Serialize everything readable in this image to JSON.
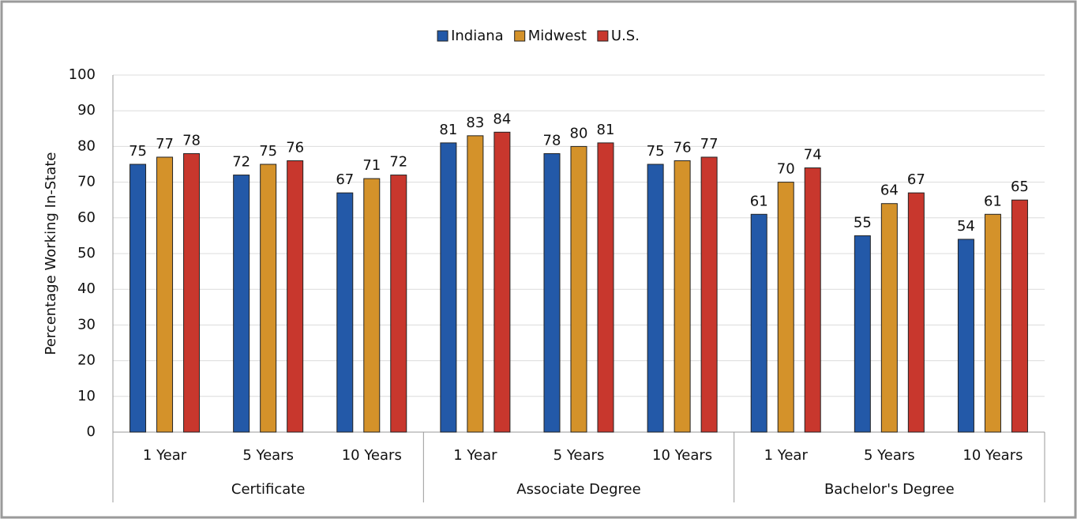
{
  "chart_data": {
    "type": "bar",
    "y_label": "Percentage Working In-State",
    "categories": [
      "1 Year",
      "5 Years",
      "10 Years",
      "1 Year",
      "5 Years",
      "10 Years",
      "1 Year",
      "5 Years",
      "10 Years"
    ],
    "category_groups": [
      "Certificate",
      "Associate Degree",
      "Bachelor's Degree"
    ],
    "series": [
      {
        "name": "Indiana",
        "color": "#2359a8",
        "values": [
          75,
          72,
          67,
          81,
          78,
          75,
          61,
          55,
          54
        ]
      },
      {
        "name": "Midwest",
        "color": "#d4922a",
        "values": [
          77,
          75,
          71,
          83,
          80,
          76,
          70,
          64,
          61
        ]
      },
      {
        "name": "U.S.",
        "color": "#c8372d",
        "values": [
          78,
          76,
          72,
          84,
          81,
          77,
          74,
          67,
          65
        ]
      }
    ],
    "ylim": [
      0,
      100
    ],
    "yticks": [
      0,
      10,
      20,
      30,
      40,
      50,
      60,
      70,
      80,
      90,
      100
    ],
    "grid": true,
    "legend": "top"
  }
}
